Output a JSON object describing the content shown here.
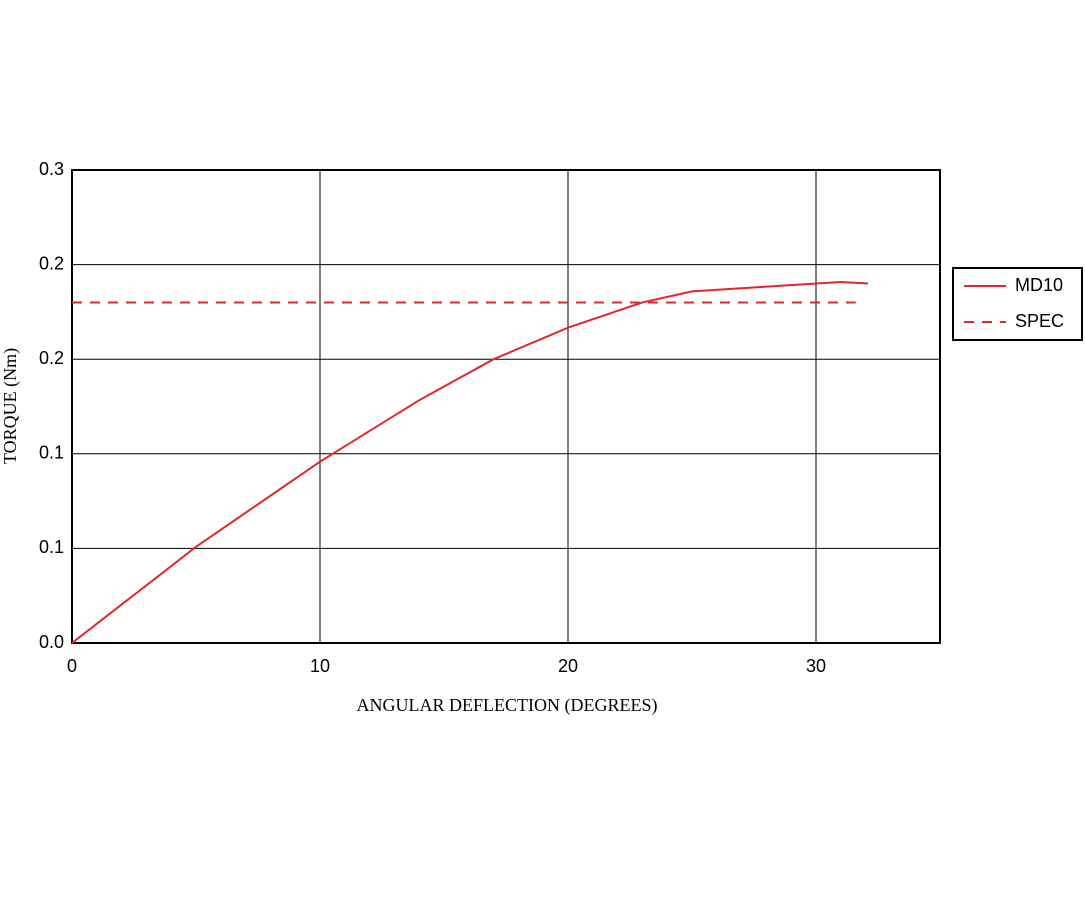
{
  "chart_data": {
    "type": "line",
    "x_label": "ANGULAR DEFLECTION (DEGREES)",
    "y_label": "TORQUE (Nm)",
    "xlim": [
      0,
      35
    ],
    "ylim": [
      0,
      0.3
    ],
    "xticks": [
      0,
      10,
      20,
      30
    ],
    "yticks": [
      {
        "value": 0,
        "label": "0.0"
      },
      {
        "value": 0.06,
        "label": "0.1"
      },
      {
        "value": 0.12,
        "label": "0.1"
      },
      {
        "value": 0.18,
        "label": "0.2"
      },
      {
        "value": 0.24,
        "label": "0.2"
      },
      {
        "value": 0.3,
        "label": "0.3"
      }
    ],
    "grid": true,
    "legend": "right",
    "series": [
      {
        "name": "MD10",
        "color": "#e0282e",
        "style": "solid",
        "x": [
          0,
          5,
          10,
          14,
          17,
          20,
          23,
          25,
          28,
          31,
          32.1
        ],
        "values": [
          0,
          0.061,
          0.115,
          0.154,
          0.18,
          0.2,
          0.216,
          0.223,
          0.226,
          0.229,
          0.228
        ]
      },
      {
        "name": "SPEC",
        "color": "#e0282e",
        "style": "dashed",
        "x": [
          0,
          31.6
        ],
        "values": [
          0.216,
          0.216
        ]
      }
    ]
  }
}
